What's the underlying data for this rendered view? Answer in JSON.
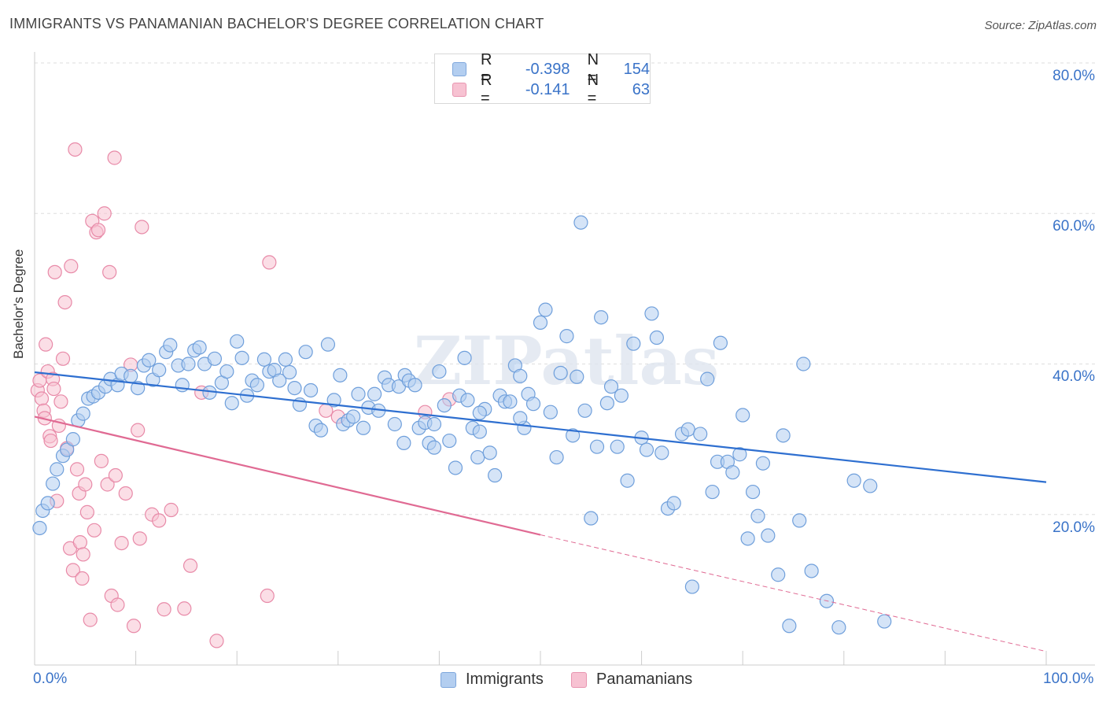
{
  "title": "IMMIGRANTS VS PANAMANIAN BACHELOR'S DEGREE CORRELATION CHART",
  "source": "Source: ZipAtlas.com",
  "watermark": "ZIPatlas",
  "legend": {
    "r_label": "R =",
    "n_label": "N =",
    "immigrants": {
      "r": "-0.398",
      "n": "154"
    },
    "panamanians": {
      "r": "-0.141",
      "n": "63"
    }
  },
  "colors": {
    "immigrants_fill": "#b3cef0",
    "immigrants_stroke": "#6f9fdb",
    "immigrants_line": "#2e6fd0",
    "panamanians_fill": "#f7c2d2",
    "panamanians_stroke": "#e88aa8",
    "panamanians_line": "#e06a93",
    "tick_text": "#3a73c8",
    "grid": "#dddddd"
  },
  "chart_data": {
    "type": "scatter",
    "title": "IMMIGRANTS VS PANAMANIAN BACHELOR'S DEGREE CORRELATION CHART",
    "xlabel": "",
    "ylabel": "Bachelor's Degree",
    "xlim": [
      0,
      100
    ],
    "ylim": [
      0,
      80
    ],
    "x_tick_labels": [
      "0.0%",
      "100.0%"
    ],
    "y_ticks": [
      20,
      40,
      60,
      80
    ],
    "y_tick_labels": [
      "20.0%",
      "40.0%",
      "60.0%",
      "80.0%"
    ],
    "grid": true,
    "series": [
      {
        "name": "Immigrants",
        "r": -0.398,
        "n": 154,
        "trend": {
          "x": [
            0,
            100
          ],
          "y": [
            38.9,
            24.3
          ]
        },
        "points": [
          [
            0.5,
            18.2
          ],
          [
            0.8,
            20.5
          ],
          [
            1.3,
            21.5
          ],
          [
            1.8,
            24.1
          ],
          [
            2.2,
            26.0
          ],
          [
            2.8,
            27.8
          ],
          [
            3.2,
            28.6
          ],
          [
            3.8,
            30.0
          ],
          [
            4.3,
            32.5
          ],
          [
            4.8,
            33.4
          ],
          [
            5.3,
            35.4
          ],
          [
            5.8,
            35.7
          ],
          [
            6.3,
            36.2
          ],
          [
            7.0,
            37.0
          ],
          [
            7.5,
            38.0
          ],
          [
            8.2,
            37.2
          ],
          [
            8.6,
            38.7
          ],
          [
            9.5,
            38.4
          ],
          [
            10.2,
            36.8
          ],
          [
            10.8,
            39.8
          ],
          [
            11.3,
            40.5
          ],
          [
            11.7,
            37.9
          ],
          [
            12.3,
            39.2
          ],
          [
            13.0,
            41.6
          ],
          [
            13.4,
            42.5
          ],
          [
            14.2,
            39.8
          ],
          [
            14.6,
            37.2
          ],
          [
            15.2,
            40.0
          ],
          [
            15.8,
            41.8
          ],
          [
            16.3,
            42.2
          ],
          [
            16.8,
            40.0
          ],
          [
            17.3,
            36.2
          ],
          [
            17.8,
            40.7
          ],
          [
            18.5,
            37.5
          ],
          [
            19.0,
            39.0
          ],
          [
            19.5,
            34.8
          ],
          [
            20.0,
            43.0
          ],
          [
            20.5,
            40.8
          ],
          [
            21.0,
            35.8
          ],
          [
            21.5,
            37.8
          ],
          [
            22.0,
            37.2
          ],
          [
            22.7,
            40.6
          ],
          [
            23.2,
            39.0
          ],
          [
            23.7,
            39.2
          ],
          [
            24.2,
            37.8
          ],
          [
            24.8,
            40.6
          ],
          [
            25.2,
            38.9
          ],
          [
            25.7,
            36.8
          ],
          [
            26.2,
            34.6
          ],
          [
            26.8,
            41.6
          ],
          [
            27.3,
            36.5
          ],
          [
            27.8,
            31.8
          ],
          [
            28.3,
            31.2
          ],
          [
            29.0,
            42.6
          ],
          [
            29.6,
            35.2
          ],
          [
            30.2,
            38.5
          ],
          [
            30.5,
            32.0
          ],
          [
            31.0,
            32.5
          ],
          [
            31.5,
            33.0
          ],
          [
            32.0,
            36.0
          ],
          [
            32.5,
            31.5
          ],
          [
            33.0,
            34.2
          ],
          [
            33.6,
            36.0
          ],
          [
            34.0,
            33.8
          ],
          [
            34.6,
            38.2
          ],
          [
            35.0,
            37.2
          ],
          [
            35.6,
            32.0
          ],
          [
            36.0,
            37.0
          ],
          [
            36.6,
            38.5
          ],
          [
            37.0,
            37.8
          ],
          [
            37.6,
            37.2
          ],
          [
            38.0,
            31.5
          ],
          [
            38.6,
            32.2
          ],
          [
            39.0,
            29.5
          ],
          [
            39.5,
            28.9
          ],
          [
            40.0,
            39.0
          ],
          [
            40.5,
            34.5
          ],
          [
            41.0,
            29.8
          ],
          [
            41.6,
            26.2
          ],
          [
            42.0,
            35.8
          ],
          [
            42.5,
            40.8
          ],
          [
            42.8,
            35.2
          ],
          [
            43.3,
            31.5
          ],
          [
            43.8,
            27.6
          ],
          [
            44.0,
            31.0
          ],
          [
            44.5,
            34.0
          ],
          [
            45.0,
            28.2
          ],
          [
            45.5,
            25.2
          ],
          [
            46.0,
            35.8
          ],
          [
            46.5,
            35.0
          ],
          [
            47.0,
            35.0
          ],
          [
            47.5,
            39.8
          ],
          [
            48.0,
            38.4
          ],
          [
            48.4,
            31.5
          ],
          [
            48.8,
            36.0
          ],
          [
            49.3,
            34.7
          ],
          [
            50.0,
            45.5
          ],
          [
            50.5,
            47.2
          ],
          [
            51.0,
            33.6
          ],
          [
            51.6,
            27.6
          ],
          [
            52.0,
            38.8
          ],
          [
            52.6,
            43.7
          ],
          [
            53.2,
            30.5
          ],
          [
            53.6,
            38.3
          ],
          [
            54.0,
            58.8
          ],
          [
            54.4,
            33.8
          ],
          [
            55.0,
            19.5
          ],
          [
            55.6,
            29.0
          ],
          [
            56.0,
            46.2
          ],
          [
            56.6,
            34.8
          ],
          [
            57.0,
            37.0
          ],
          [
            57.6,
            29.0
          ],
          [
            58.0,
            35.8
          ],
          [
            58.6,
            24.5
          ],
          [
            59.2,
            42.7
          ],
          [
            60.0,
            30.2
          ],
          [
            60.5,
            28.6
          ],
          [
            61.0,
            46.7
          ],
          [
            61.5,
            43.5
          ],
          [
            62.0,
            28.2
          ],
          [
            62.6,
            20.8
          ],
          [
            63.2,
            21.5
          ],
          [
            64.0,
            30.7
          ],
          [
            64.6,
            31.3
          ],
          [
            65.0,
            10.4
          ],
          [
            65.8,
            30.7
          ],
          [
            66.5,
            38.0
          ],
          [
            67.0,
            23.0
          ],
          [
            67.5,
            27.0
          ],
          [
            67.8,
            42.8
          ],
          [
            68.5,
            27.0
          ],
          [
            69.0,
            25.6
          ],
          [
            69.7,
            28.0
          ],
          [
            70.0,
            33.2
          ],
          [
            70.5,
            16.8
          ],
          [
            71.0,
            23.0
          ],
          [
            71.5,
            19.8
          ],
          [
            72.0,
            26.8
          ],
          [
            72.5,
            17.2
          ],
          [
            73.5,
            12.0
          ],
          [
            74.0,
            30.5
          ],
          [
            74.6,
            5.2
          ],
          [
            75.6,
            19.2
          ],
          [
            76.0,
            40.0
          ],
          [
            76.8,
            12.5
          ],
          [
            78.3,
            8.5
          ],
          [
            79.5,
            5.0
          ],
          [
            81.0,
            24.5
          ],
          [
            82.6,
            23.8
          ],
          [
            84.0,
            5.8
          ],
          [
            36.5,
            29.5
          ],
          [
            39.5,
            32.0
          ],
          [
            44.0,
            33.5
          ],
          [
            48.0,
            32.8
          ]
        ]
      },
      {
        "name": "Panamanians",
        "r": -0.141,
        "n": 63,
        "trend": {
          "x": [
            0,
            50
          ],
          "y": [
            33.0,
            17.3
          ]
        },
        "trend_extension": {
          "x": [
            50,
            100
          ],
          "y": [
            17.3,
            1.8
          ]
        },
        "points": [
          [
            0.3,
            36.5
          ],
          [
            0.5,
            37.8
          ],
          [
            0.7,
            35.4
          ],
          [
            0.9,
            33.8
          ],
          [
            1.0,
            32.8
          ],
          [
            1.1,
            42.6
          ],
          [
            1.3,
            39.0
          ],
          [
            1.5,
            30.4
          ],
          [
            1.6,
            29.8
          ],
          [
            1.8,
            38.0
          ],
          [
            1.9,
            36.7
          ],
          [
            2.0,
            52.2
          ],
          [
            2.2,
            21.8
          ],
          [
            2.4,
            31.8
          ],
          [
            2.6,
            35.0
          ],
          [
            2.8,
            40.7
          ],
          [
            3.0,
            48.2
          ],
          [
            3.2,
            28.8
          ],
          [
            3.5,
            15.5
          ],
          [
            3.6,
            53.0
          ],
          [
            3.8,
            12.6
          ],
          [
            4.0,
            68.5
          ],
          [
            4.2,
            26.0
          ],
          [
            4.4,
            22.8
          ],
          [
            4.5,
            16.3
          ],
          [
            4.7,
            11.5
          ],
          [
            4.8,
            14.7
          ],
          [
            5.0,
            24.0
          ],
          [
            5.2,
            20.3
          ],
          [
            5.5,
            6.0
          ],
          [
            5.7,
            59.0
          ],
          [
            5.9,
            17.9
          ],
          [
            6.1,
            57.5
          ],
          [
            6.3,
            57.8
          ],
          [
            6.6,
            27.1
          ],
          [
            6.9,
            60.0
          ],
          [
            7.2,
            24.0
          ],
          [
            7.4,
            52.2
          ],
          [
            7.6,
            9.2
          ],
          [
            7.9,
            67.4
          ],
          [
            8.0,
            25.2
          ],
          [
            8.2,
            8.0
          ],
          [
            8.6,
            16.2
          ],
          [
            9.0,
            22.8
          ],
          [
            9.5,
            39.9
          ],
          [
            9.8,
            5.2
          ],
          [
            10.2,
            31.2
          ],
          [
            10.4,
            16.8
          ],
          [
            10.6,
            58.2
          ],
          [
            11.6,
            20.0
          ],
          [
            12.3,
            19.2
          ],
          [
            12.8,
            7.4
          ],
          [
            13.5,
            20.6
          ],
          [
            14.8,
            7.5
          ],
          [
            15.4,
            13.2
          ],
          [
            16.5,
            36.2
          ],
          [
            18.0,
            3.2
          ],
          [
            23.0,
            9.2
          ],
          [
            23.2,
            53.5
          ],
          [
            28.8,
            33.8
          ],
          [
            30.0,
            33.0
          ],
          [
            38.6,
            33.6
          ],
          [
            41.0,
            35.3
          ]
        ]
      }
    ]
  },
  "bottom_legend": {
    "immigrants": "Immigrants",
    "panamanians": "Panamanians"
  }
}
